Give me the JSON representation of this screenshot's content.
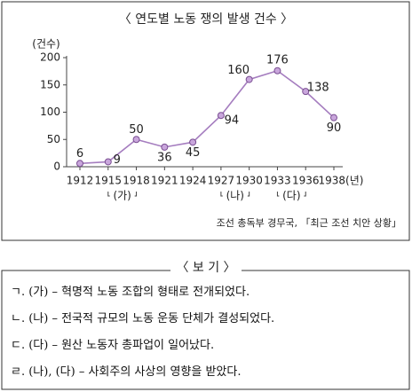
{
  "chart_data": {
    "type": "line",
    "title": "〈 연도별 노동 쟁의 발생 건수 〉",
    "y_label": "(건수)",
    "categories": [
      "1912",
      "1915",
      "1918",
      "1921",
      "1924",
      "1927",
      "1930",
      "1933",
      "1936",
      "1938(년)"
    ],
    "values": [
      6,
      9,
      50,
      36,
      45,
      94,
      160,
      176,
      138,
      90
    ],
    "color": "#a57dbf",
    "ylim": [
      0,
      200
    ],
    "yticks": [
      0,
      50,
      100,
      150,
      200
    ],
    "period_labels": [
      "(가)",
      "(나)",
      "(다)"
    ],
    "source": "조선 총독부 경무국, 「최근 조선 치안 상황」"
  },
  "options": {
    "title": "〈 보 기 〉",
    "items": [
      "ㄱ. (가) – 혁명적 노동 조합의 형태로 전개되었다.",
      "ㄴ. (나) – 전국적 규모의 노동 운동 단체가 결성되었다.",
      "ㄷ. (다) – 원산 노동자 총파업이 일어났다.",
      "ㄹ. (나), (다) – 사회주의 사상의 영향을 받았다."
    ]
  }
}
